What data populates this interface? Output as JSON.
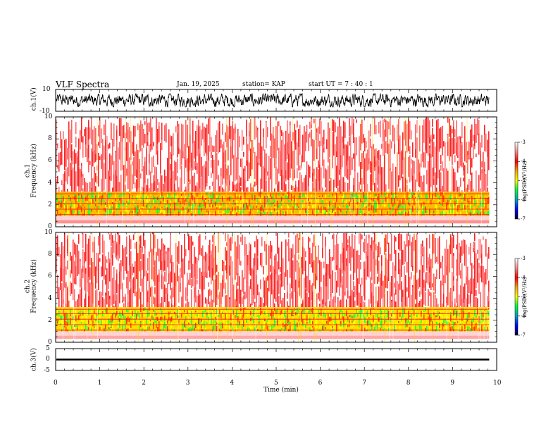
{
  "header": {
    "title": "VLF Spectra",
    "date": "Jan. 19, 2025",
    "station": "station= KAP",
    "start_ut": "start UT =   7 : 40 : 1"
  },
  "chart_data": [
    {
      "type": "line",
      "name": "ch1-waveform",
      "ylabel": "ch.1(V)",
      "ylim": [
        -10,
        10
      ],
      "ytick_labels": [
        "10",
        "-10"
      ],
      "xlim": [
        0,
        10
      ],
      "data_end_min": 9.83,
      "amplitude_range": [
        -6,
        6
      ],
      "color": "#000000"
    },
    {
      "type": "heatmap",
      "name": "ch1-spectrogram",
      "ylabel": "ch.1\nFrequency (kHz)",
      "ylim": [
        0,
        10
      ],
      "yticks": [
        0,
        2,
        4,
        6,
        8,
        10
      ],
      "xlim": [
        0,
        10
      ],
      "data_end_min": 9.83,
      "colorbar": {
        "label": "log(PSD)(V²/Hz)",
        "range": [
          -7,
          -3
        ],
        "ticks": [
          "-3",
          "-4",
          "-5",
          "-6",
          "-7"
        ]
      },
      "bands": [
        {
          "from_khz": 0.3,
          "to_khz": 0.6,
          "level": -3.5
        },
        {
          "from_khz": 0.6,
          "to_khz": 1.0,
          "level": -3.2
        },
        {
          "from_khz": 1.0,
          "to_khz": 3.2,
          "level": -4.6
        },
        {
          "from_khz": 3.2,
          "to_khz": 10.0,
          "level": -3.0
        }
      ]
    },
    {
      "type": "heatmap",
      "name": "ch2-spectrogram",
      "ylabel": "ch.2\nFrequency (kHz)",
      "ylim": [
        0,
        10
      ],
      "yticks": [
        0,
        2,
        4,
        6,
        8,
        10
      ],
      "xlim": [
        0,
        10
      ],
      "data_end_min": 9.83,
      "colorbar": {
        "label": "log(PSD)(V²/Hz)",
        "range": [
          -7,
          -3
        ],
        "ticks": [
          "-3",
          "-4",
          "-5",
          "-6",
          "-7"
        ]
      },
      "bands": [
        {
          "from_khz": 0.3,
          "to_khz": 0.6,
          "level": -3.4
        },
        {
          "from_khz": 0.6,
          "to_khz": 1.0,
          "level": -3.2
        },
        {
          "from_khz": 1.0,
          "to_khz": 3.2,
          "level": -4.8
        },
        {
          "from_khz": 3.2,
          "to_khz": 10.0,
          "level": -3.0
        }
      ]
    },
    {
      "type": "line",
      "name": "ch3-waveform",
      "ylabel": "ch.3(V)",
      "ylim": [
        -5,
        5
      ],
      "ytick_labels": [
        "5",
        "0",
        "-5"
      ],
      "xlim": [
        0,
        10
      ],
      "data_end_min": 9.83,
      "value_range": [
        -0.4,
        0.4
      ],
      "color": "#000000"
    }
  ],
  "xaxis": {
    "label": "Time (min)",
    "ticks": [
      "0",
      "1",
      "2",
      "3",
      "4",
      "5",
      "6",
      "7",
      "8",
      "9",
      "10"
    ]
  }
}
